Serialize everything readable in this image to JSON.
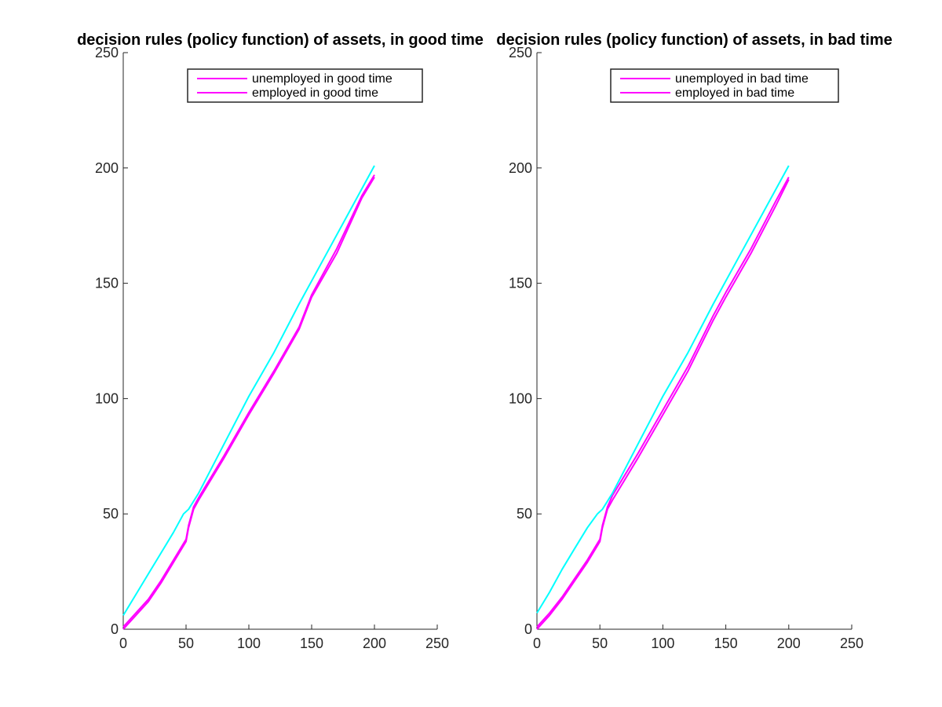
{
  "chart_data": [
    {
      "type": "line",
      "title": "decision rules (policy function) of assets, in good time",
      "xlabel": "",
      "ylabel": "",
      "xlim": [
        0,
        250
      ],
      "ylim": [
        0,
        250
      ],
      "xticks": [
        0,
        50,
        100,
        150,
        200,
        250
      ],
      "yticks": [
        0,
        50,
        100,
        150,
        200,
        250
      ],
      "xtick_labels": [
        "0",
        "50",
        "100",
        "150",
        "200",
        "250"
      ],
      "ytick_labels": [
        "0",
        "50",
        "100",
        "150",
        "200",
        "250"
      ],
      "grid": false,
      "legend_position": "top-right",
      "series": [
        {
          "name": "unemployed in good time",
          "color": "#ff00ff",
          "x": [
            0,
            10,
            20,
            30,
            40,
            50,
            52,
            56,
            60,
            80,
            100,
            120,
            140,
            150,
            170,
            190,
            200
          ],
          "y": [
            0,
            6,
            12,
            20,
            29,
            38,
            44,
            52,
            56,
            74,
            93,
            111,
            130,
            144,
            163,
            187,
            196
          ]
        },
        {
          "name": "employed in good time",
          "color": "#ff00ff",
          "x": [
            0,
            10,
            20,
            30,
            40,
            50,
            52,
            56,
            60,
            80,
            100,
            120,
            140,
            150,
            170,
            190,
            200
          ],
          "y": [
            1,
            7,
            13,
            21,
            30,
            39,
            45,
            53,
            57,
            75,
            94,
            112,
            131,
            145,
            165,
            188,
            197
          ]
        },
        {
          "name": "",
          "color": "#00ffff",
          "x": [
            0,
            10,
            20,
            30,
            40,
            48,
            52,
            60,
            80,
            100,
            120,
            140,
            160,
            180,
            200
          ],
          "y": [
            6,
            15,
            24,
            33,
            42,
            50,
            52,
            59,
            80,
            101,
            120,
            141,
            161,
            181,
            201
          ]
        }
      ]
    },
    {
      "type": "line",
      "title": "decision rules (policy function) of assets, in bad time",
      "xlabel": "",
      "ylabel": "",
      "xlim": [
        0,
        250
      ],
      "ylim": [
        0,
        250
      ],
      "xticks": [
        0,
        50,
        100,
        150,
        200,
        250
      ],
      "yticks": [
        0,
        50,
        100,
        150,
        200,
        250
      ],
      "xtick_labels": [
        "0",
        "50",
        "100",
        "150",
        "200",
        "250"
      ],
      "ytick_labels": [
        "0",
        "50",
        "100",
        "150",
        "200",
        "250"
      ],
      "grid": false,
      "legend_position": "top-right",
      "series": [
        {
          "name": "unemployed in bad time",
          "color": "#ff00ff",
          "x": [
            0,
            10,
            20,
            30,
            40,
            50,
            52,
            56,
            60,
            80,
            100,
            120,
            140,
            150,
            170,
            190,
            200
          ],
          "y": [
            0,
            6,
            13,
            21,
            29,
            38,
            44,
            52,
            56,
            74,
            93,
            112,
            134,
            144,
            163,
            184,
            195
          ]
        },
        {
          "name": "employed in bad time",
          "color": "#ff00ff",
          "x": [
            0,
            10,
            20,
            30,
            40,
            50,
            52,
            56,
            60,
            80,
            100,
            120,
            140,
            150,
            170,
            190,
            200
          ],
          "y": [
            1,
            7,
            14,
            22,
            30,
            39,
            45,
            53,
            58,
            76,
            95,
            114,
            136,
            146,
            165,
            186,
            196
          ]
        },
        {
          "name": "",
          "color": "#00ffff",
          "x": [
            0,
            10,
            20,
            30,
            40,
            48,
            52,
            60,
            80,
            100,
            120,
            140,
            160,
            180,
            200
          ],
          "y": [
            7,
            16,
            26,
            35,
            44,
            50,
            52,
            59,
            80,
            101,
            120,
            141,
            161,
            181,
            201
          ]
        }
      ]
    }
  ]
}
